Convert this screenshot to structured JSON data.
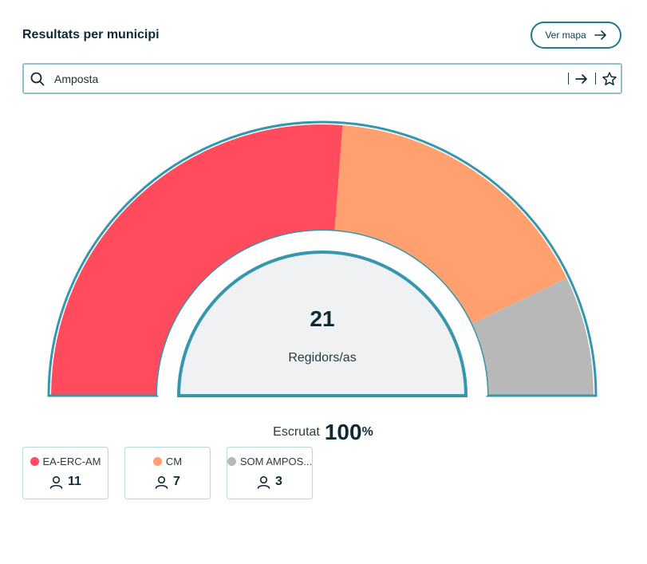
{
  "header": {
    "title": "Resultats per municipi",
    "map_button_label": "Ver mapa"
  },
  "search": {
    "value": "Amposta"
  },
  "chart_data": {
    "type": "pie",
    "variant": "semicircle-seats",
    "total_seats": "21",
    "total_caption": "Regidors/as",
    "series": [
      {
        "name": "EA-ERC-AM",
        "label": "EA-ERC-AM",
        "value": 11,
        "color": "#ff4b5c"
      },
      {
        "name": "CM",
        "label": "CM",
        "value": 7,
        "color": "#ffa06e"
      },
      {
        "name": "SOM AMPOSTA",
        "label": "SOM AMPOS...",
        "value": 3,
        "color": "#b8b8b8"
      }
    ]
  },
  "scrutiny": {
    "label": "Escrutat",
    "value": "100",
    "unit": "%"
  },
  "icons": {
    "search": "search-icon",
    "go": "arrow-right-icon",
    "favorite": "star-icon",
    "seats": "person-icon"
  },
  "colors": {
    "accent": "#217a8f",
    "outline": "#3597ad",
    "center_fill": "#eff1f3"
  }
}
